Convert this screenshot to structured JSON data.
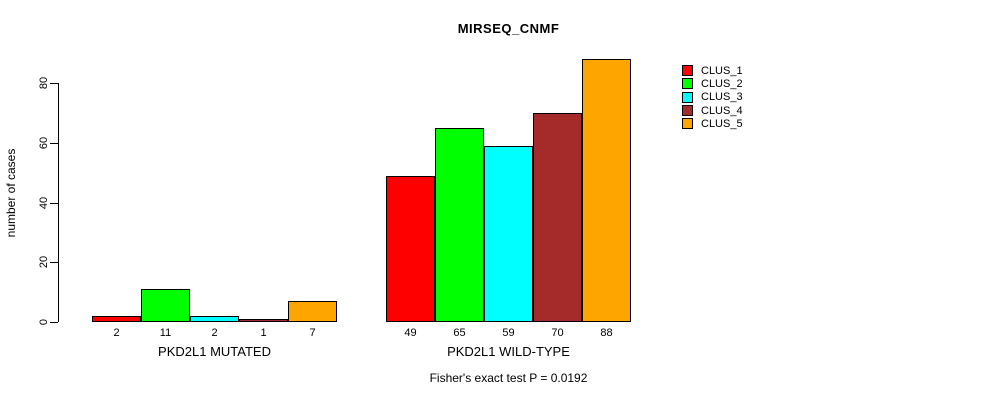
{
  "chart_data": {
    "type": "bar",
    "title": "MIRSEQ_CNMF",
    "ylabel": "number of cases",
    "xlabel": "",
    "footer": "Fisher's exact test P = 0.0192",
    "yticks": [
      0,
      20,
      40,
      60,
      80
    ],
    "ylim": [
      0,
      88
    ],
    "grid": false,
    "legend_position": "right-outside",
    "bar_value_labels_shown": true,
    "categories": [
      "PKD2L1 MUTATED",
      "PKD2L1 WILD-TYPE"
    ],
    "series": [
      {
        "name": "CLUS_1",
        "color": "#FF0000",
        "values": [
          2,
          49
        ]
      },
      {
        "name": "CLUS_2",
        "color": "#00FF00",
        "values": [
          11,
          65
        ]
      },
      {
        "name": "CLUS_3",
        "color": "#00FFFF",
        "values": [
          2,
          59
        ]
      },
      {
        "name": "CLUS_4",
        "color": "#A52A2A",
        "values": [
          1,
          70
        ]
      },
      {
        "name": "CLUS_5",
        "color": "#FFA500",
        "values": [
          7,
          88
        ]
      }
    ],
    "groups": [
      {
        "label": "PKD2L1 MUTATED",
        "values": [
          2,
          11,
          2,
          1,
          7
        ]
      },
      {
        "label": "PKD2L1 WILD-TYPE",
        "values": [
          49,
          65,
          59,
          70,
          88
        ]
      }
    ],
    "colors": {
      "background": "#FFFFFF",
      "axis": "#000000",
      "text": "#000000"
    }
  }
}
